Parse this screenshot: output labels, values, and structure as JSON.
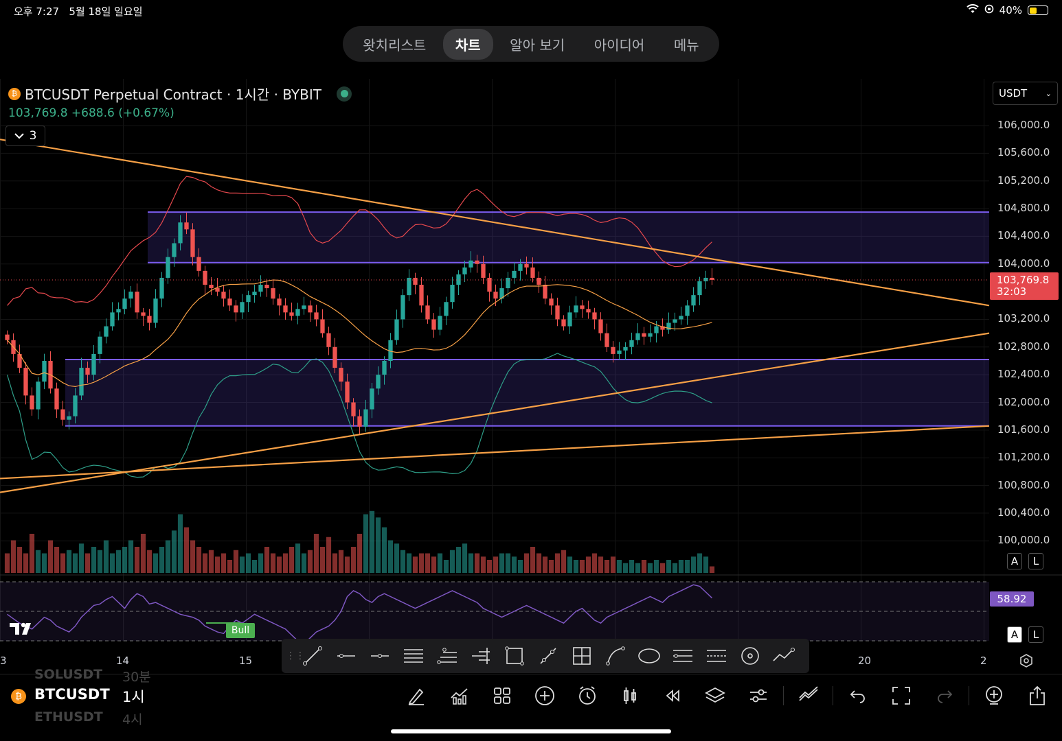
{
  "status": {
    "time": "오후 7:27",
    "date": "5월 18일 일요일",
    "battery": "40%",
    "battery_level": 0.4
  },
  "nav": {
    "tabs": [
      "왓치리스트",
      "차트",
      "알아 보기",
      "아이디어",
      "메뉴"
    ],
    "active": "차트"
  },
  "symbol": {
    "title": "BTCUSDT Perpetual Contract · 1시간 · BYBIT",
    "price_line": "103,769.8  +688.6 (+0.67%)",
    "collapsed_count": "3"
  },
  "currency": "USDT",
  "price_axis": [
    "106,000.0",
    "105,600.0",
    "105,200.0",
    "104,800.0",
    "104,400.0",
    "104,000.0",
    "103,200.0",
    "102,800.0",
    "102,400.0",
    "102,000.0",
    "101,600.0",
    "101,200.0",
    "100,800.0",
    "100,400.0",
    "100,000.0"
  ],
  "last_price": {
    "value": "103,769.8",
    "countdown": "32:03"
  },
  "rsi": {
    "value": "58.92",
    "bull_label": "Bull"
  },
  "axis_buttons": {
    "a": "A",
    "l": "L"
  },
  "time_axis": [
    "3",
    "14",
    "15",
    "20",
    "2"
  ],
  "toolbar_tools": [
    "trend-line",
    "horizontal-ray",
    "horizontal-line",
    "parallel-channel",
    "fib-retracement",
    "pitchfork",
    "rectangle",
    "path",
    "long-position",
    "curve",
    "ellipse",
    "price-range",
    "date-range",
    "circle",
    "forecast"
  ],
  "bottom": {
    "symbol_above": "SOLUSDT",
    "interval_above": "30분",
    "symbol": "BTCUSDT",
    "interval": "1시",
    "symbol_below": "ETHUSDT",
    "interval_below": "4시"
  },
  "colors": {
    "bull": "#26a69a",
    "bear": "#ef5350",
    "trendline": "#f7a046",
    "zone": "#7b5cf0",
    "rsi": "#7e57c2"
  },
  "chart_data": {
    "type": "candlestick",
    "title": "BTCUSDT Perpetual Contract · 1시간 · BYBIT",
    "ylim": [
      99800,
      106300
    ],
    "x_ticks": [
      "3",
      "14",
      "15",
      "20",
      "2"
    ],
    "y_ticks": [
      106000,
      105600,
      105200,
      104800,
      104400,
      104000,
      103200,
      102800,
      102400,
      102000,
      101600,
      101200,
      100800,
      100400,
      100000
    ],
    "last_price": 103769.8,
    "zones": [
      {
        "from": 104020,
        "to": 104750
      },
      {
        "from": 101660,
        "to": 102620
      }
    ],
    "closes": [
      102900,
      102700,
      102500,
      102100,
      101900,
      102300,
      102600,
      102200,
      101900,
      101750,
      101800,
      102100,
      102500,
      102400,
      102700,
      102950,
      103100,
      103300,
      103350,
      103500,
      103600,
      103300,
      103250,
      103150,
      103500,
      103800,
      104100,
      104300,
      104600,
      104500,
      104100,
      103900,
      103700,
      103650,
      103600,
      103500,
      103400,
      103300,
      103450,
      103550,
      103600,
      103700,
      103650,
      103500,
      103400,
      103300,
      103250,
      103350,
      103400,
      103300,
      103200,
      103000,
      102800,
      102500,
      102300,
      102000,
      101800,
      101650,
      101900,
      102200,
      102400,
      102600,
      102900,
      103200,
      103550,
      103800,
      103700,
      103400,
      103200,
      103050,
      103250,
      103450,
      103700,
      103850,
      103950,
      104050,
      104000,
      103800,
      103600,
      103500,
      103650,
      103800,
      103900,
      104000,
      103950,
      103800,
      103700,
      103500,
      103400,
      103200,
      103100,
      103300,
      103400,
      103350,
      103300,
      103200,
      103000,
      102800,
      102700,
      102750,
      102800,
      102900,
      103000,
      102950,
      103000,
      103100,
      103050,
      103150,
      103200,
      103250,
      103400,
      103550,
      103750,
      103800,
      103770
    ],
    "volumes": [
      0.3,
      0.5,
      0.4,
      0.3,
      0.6,
      0.35,
      0.3,
      0.5,
      0.4,
      0.3,
      0.35,
      0.3,
      0.45,
      0.3,
      0.4,
      0.35,
      0.5,
      0.3,
      0.35,
      0.4,
      0.5,
      0.4,
      0.6,
      0.35,
      0.3,
      0.4,
      0.5,
      0.65,
      0.9,
      0.7,
      0.5,
      0.4,
      0.3,
      0.35,
      0.25,
      0.3,
      0.2,
      0.35,
      0.25,
      0.3,
      0.2,
      0.3,
      0.4,
      0.3,
      0.25,
      0.3,
      0.4,
      0.45,
      0.3,
      0.35,
      0.6,
      0.4,
      0.55,
      0.3,
      0.35,
      0.25,
      0.4,
      0.6,
      0.9,
      0.95,
      0.85,
      0.7,
      0.5,
      0.45,
      0.35,
      0.3,
      0.25,
      0.3,
      0.3,
      0.25,
      0.3,
      0.2,
      0.35,
      0.4,
      0.45,
      0.3,
      0.3,
      0.25,
      0.2,
      0.25,
      0.3,
      0.3,
      0.25,
      0.2,
      0.3,
      0.4,
      0.3,
      0.25,
      0.2,
      0.3,
      0.35,
      0.25,
      0.2,
      0.2,
      0.25,
      0.3,
      0.25,
      0.2,
      0.25,
      0.2,
      0.15,
      0.2,
      0.15,
      0.2,
      0.15,
      0.2,
      0.15,
      0.2,
      0.15,
      0.2,
      0.2,
      0.25,
      0.3,
      0.25,
      0.1
    ],
    "rsi": [
      48,
      45,
      42,
      40,
      38,
      42,
      46,
      44,
      40,
      38,
      36,
      40,
      46,
      50,
      54,
      55,
      58,
      60,
      56,
      52,
      58,
      62,
      60,
      55,
      56,
      54,
      52,
      50,
      48,
      47,
      46,
      44,
      40,
      38,
      36,
      35,
      40,
      44,
      42,
      45,
      48,
      46,
      44,
      42,
      40,
      38,
      34,
      30,
      28,
      32,
      36,
      38,
      40,
      44,
      50,
      60,
      64,
      62,
      58,
      56,
      60,
      62,
      60,
      58,
      56,
      54,
      52,
      54,
      56,
      58,
      60,
      62,
      64,
      62,
      60,
      58,
      56,
      52,
      50,
      48,
      46,
      48,
      50,
      52,
      54,
      52,
      50,
      48,
      46,
      44,
      42,
      46,
      50,
      52,
      48,
      44,
      42,
      46,
      48,
      50,
      52,
      54,
      56,
      58,
      60,
      58,
      56,
      60,
      62,
      64,
      66,
      68,
      67,
      63,
      59
    ]
  }
}
